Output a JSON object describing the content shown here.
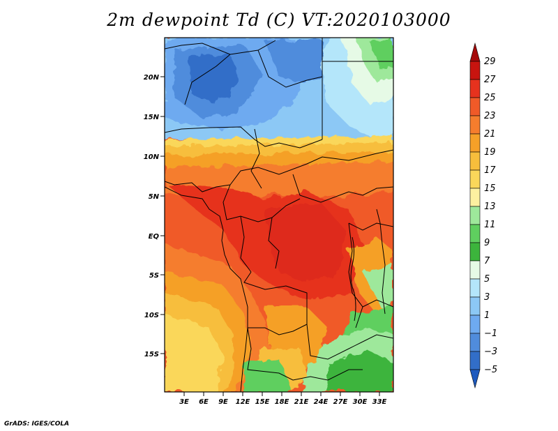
{
  "title": "2m dewpoint Td (C) VT:2020103000",
  "credit": "GrADS: IGES/COLA",
  "map": {
    "lat_ticks": [
      "20N",
      "15N",
      "10N",
      "5N",
      "EQ",
      "5S",
      "10S",
      "15S"
    ],
    "lon_ticks": [
      "3E",
      "6E",
      "9E",
      "12E",
      "15E",
      "18E",
      "21E",
      "24E",
      "27E",
      "30E",
      "33E"
    ]
  },
  "colorbar": {
    "labels": [
      "29",
      "27",
      "25",
      "23",
      "21",
      "19",
      "17",
      "15",
      "13",
      "11",
      "9",
      "7",
      "5",
      "3",
      "1",
      "−1",
      "−3",
      "−5"
    ],
    "colors": [
      "#a50a0a",
      "#c8140f",
      "#e6321e",
      "#f05a28",
      "#f57d2d",
      "#f5a028",
      "#f7be3c",
      "#fad75a",
      "#fcf0a0",
      "#9ee89b",
      "#5fcf5f",
      "#3cb43c",
      "#e6fae6",
      "#b4e6fa",
      "#8cc8f5",
      "#6eaaf0",
      "#508cdc",
      "#326ec8",
      "#1e5abe"
    ]
  }
}
